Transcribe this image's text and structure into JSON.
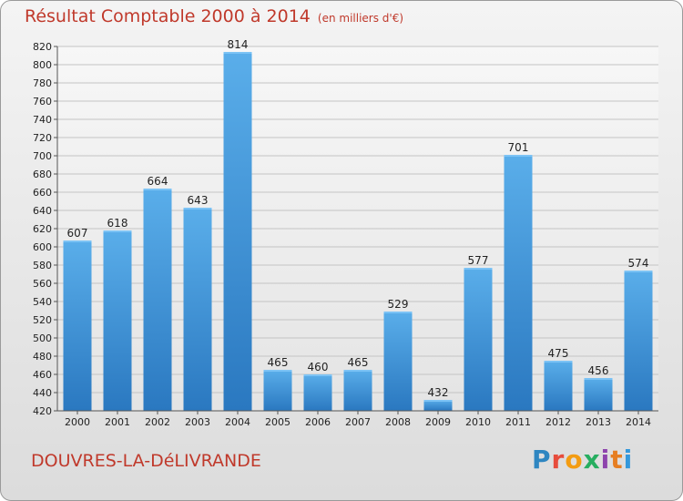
{
  "header": {
    "title": "Résultat Comptable 2000 à 2014",
    "subtitle": "(en milliers d'€)"
  },
  "footer": {
    "commune": "DOUVRES-LA-DéLIVRANDE",
    "logo_text": "Proxiti",
    "logo_colors": [
      "#2e86c1",
      "#e74c3c",
      "#f39c12",
      "#27ae60",
      "#8e44ad",
      "#e67e22",
      "#3498db"
    ]
  },
  "chart_data": {
    "type": "bar",
    "title": "Résultat Comptable 2000 à 2014",
    "subtitle": "(en milliers d'€)",
    "categories": [
      "2000",
      "2001",
      "2002",
      "2003",
      "2004",
      "2005",
      "2006",
      "2007",
      "2008",
      "2009",
      "2010",
      "2011",
      "2012",
      "2013",
      "2014"
    ],
    "values": [
      607,
      618,
      664,
      643,
      814,
      465,
      460,
      465,
      529,
      432,
      577,
      701,
      475,
      456,
      574
    ],
    "data_labels": [
      "607",
      "618",
      "664",
      "643",
      "814",
      "465",
      "460",
      "465",
      "529",
      "432",
      "577",
      "701",
      "475",
      "456",
      "574"
    ],
    "ylim": [
      420,
      820
    ],
    "yticks": [
      420,
      440,
      460,
      480,
      500,
      520,
      540,
      560,
      580,
      600,
      620,
      640,
      660,
      680,
      700,
      720,
      740,
      760,
      780,
      800,
      820
    ],
    "grid": true,
    "bar_color": "#3a8fd4"
  }
}
